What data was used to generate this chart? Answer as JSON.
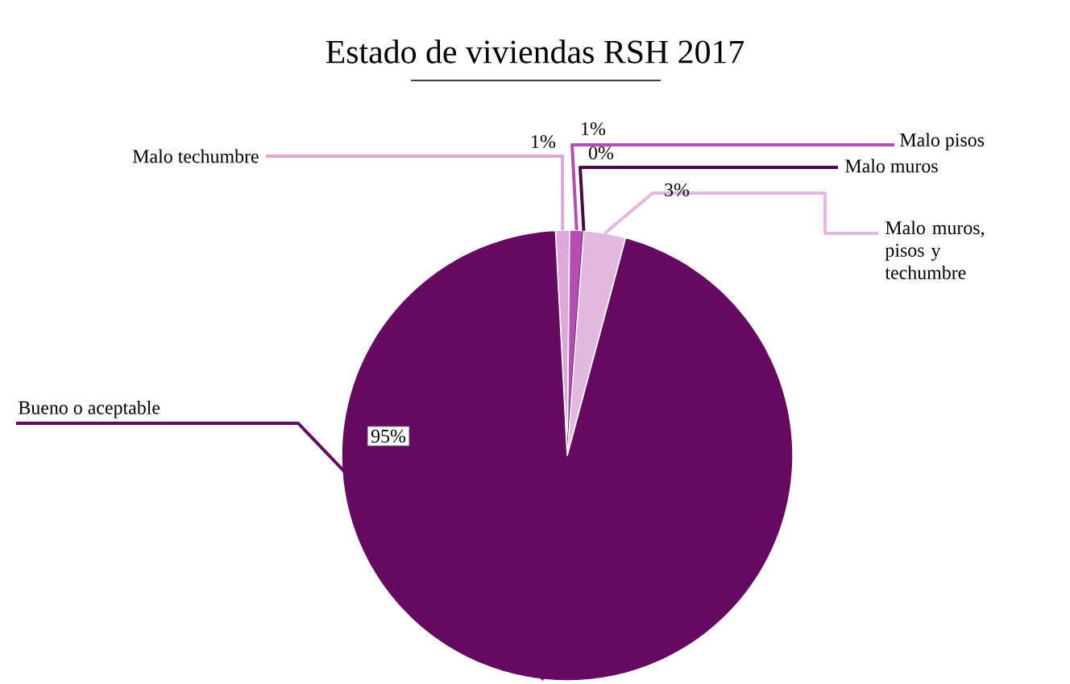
{
  "chart_data": {
    "type": "pie",
    "title": "Estado de viviendas RSH 2017",
    "categories": [
      "Malo techumbre",
      "Malo pisos",
      "Malo muros",
      "Malo muros, pisos y techumbre",
      "Bueno o aceptable"
    ],
    "values": [
      1,
      1,
      0,
      3,
      95
    ],
    "colors": [
      "#dba8d8",
      "#b64db2",
      "#4a0848",
      "#e2b8e0",
      "#640a61"
    ],
    "value_labels": [
      "1%",
      "1%",
      "0%",
      "3%",
      "95%"
    ]
  }
}
